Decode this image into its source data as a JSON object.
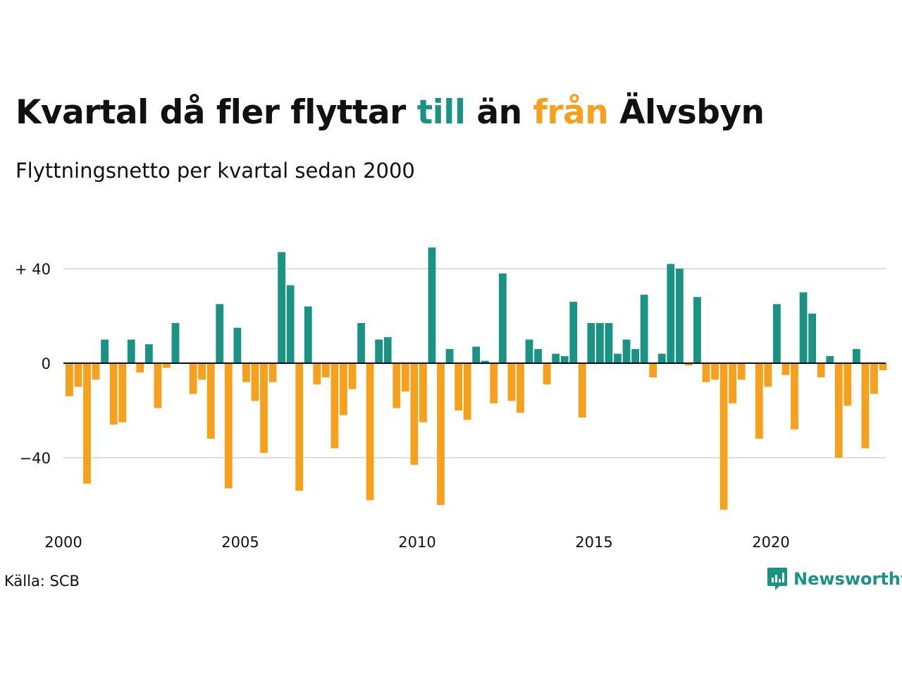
{
  "title": {
    "part1": "Kvartal då fler flyttar ",
    "till": "till",
    "part2": " än ",
    "fran": "från",
    "part3": " Älvsbyn"
  },
  "subtitle": "Flyttningsnetto per kvartal sedan 2000",
  "source": "Källa: SCB",
  "brand": {
    "name": "Newsworthy",
    "icon": "newsworthy-logo-icon"
  },
  "colors": {
    "positive": "#1a9385",
    "negative": "#f5a11e",
    "grid": "#dddddd",
    "axis": "#111111"
  },
  "chart_data": {
    "type": "bar",
    "x_start": "2000 Q1",
    "x_ticks": [
      "2000",
      "2005",
      "2010",
      "2015",
      "2020"
    ],
    "y_ticks": [
      {
        "value": 40,
        "label": "+ 40"
      },
      {
        "value": 0,
        "label": "0"
      },
      {
        "value": -40,
        "label": "−40"
      }
    ],
    "ylim": [
      -66,
      52
    ],
    "grid": true,
    "values": [
      -14,
      -10,
      -51,
      -7,
      10,
      -26,
      -25,
      10,
      -4,
      8,
      -19,
      -2,
      17,
      0,
      -13,
      -7,
      -32,
      25,
      -53,
      15,
      -8,
      -16,
      -38,
      -8,
      47,
      33,
      -54,
      24,
      -9,
      -6,
      -36,
      -22,
      -11,
      17,
      -58,
      10,
      11,
      -19,
      -12,
      -43,
      -25,
      49,
      -60,
      6,
      -20,
      -24,
      7,
      1,
      -17,
      38,
      -16,
      -21,
      10,
      6,
      -9,
      4,
      3,
      26,
      -23,
      17,
      17,
      17,
      4,
      10,
      6,
      29,
      -6,
      4,
      42,
      40,
      -1,
      28,
      -8,
      -7,
      -62,
      -17,
      -7,
      0,
      -32,
      -10,
      25,
      -5,
      -28,
      30,
      21,
      -6,
      3,
      -40,
      -18,
      6,
      -36,
      -13,
      -3
    ]
  }
}
